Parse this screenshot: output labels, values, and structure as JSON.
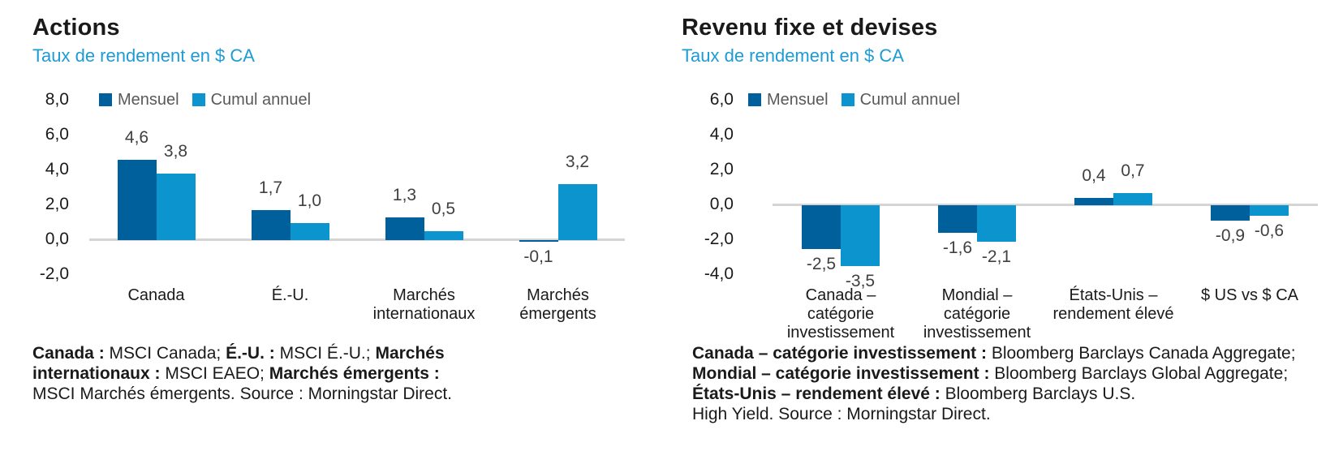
{
  "colors": {
    "mensuel_bar": "#00609C",
    "cumul_bar": "#0C94CF",
    "subtitle_text": "#1E9BD4",
    "zero_line": "#D5D5D5",
    "value_label_text": "#404040",
    "legend_text": "#595959",
    "title_text": "#1A1A1A"
  },
  "chart_data": [
    {
      "type": "bar",
      "title": "Actions",
      "subtitle": "Taux de rendement en $ CA",
      "legend_position": "top",
      "grid": false,
      "ylim": [
        -2,
        8
      ],
      "ytick_step": 2,
      "yticks": [
        "8,0",
        "6,0",
        "4,0",
        "2,0",
        "0,0",
        "-2,0"
      ],
      "categories": [
        [
          "Canada"
        ],
        [
          "É.-U."
        ],
        [
          "Marchés",
          "internationaux"
        ],
        [
          "Marchés",
          "émergents"
        ]
      ],
      "series": [
        {
          "name": "Mensuel",
          "color_key": "mensuel_bar",
          "values": [
            4.6,
            1.7,
            1.3,
            -0.1
          ],
          "labels": [
            "4,6",
            "1,7",
            "1,3",
            "-0,1"
          ]
        },
        {
          "name": "Cumul annuel",
          "color_key": "cumul_bar",
          "values": [
            3.8,
            1.0,
            0.5,
            3.2
          ],
          "labels": [
            "3,8",
            "1,0",
            "0,5",
            "3,2"
          ]
        }
      ],
      "footnote_lines": [
        [
          {
            "text": "Canada :",
            "bold": true
          },
          {
            "text": " MSCI Canada; ",
            "bold": false
          },
          {
            "text": "É.-U. :",
            "bold": true
          },
          {
            "text": " MSCI É.-U.; ",
            "bold": false
          },
          {
            "text": "Marchés",
            "bold": true
          }
        ],
        [
          {
            "text": "internationaux :",
            "bold": true
          },
          {
            "text": " MSCI EAEO; ",
            "bold": false
          },
          {
            "text": "Marchés émergents :",
            "bold": true
          }
        ],
        [
          {
            "text": "MSCI Marchés émergents. Source : Morningstar Direct.",
            "bold": false
          }
        ]
      ]
    },
    {
      "type": "bar",
      "title": "Revenu fixe et devises",
      "subtitle": "Taux de rendement en $ CA",
      "legend_position": "top",
      "grid": false,
      "ylim": [
        -4,
        6
      ],
      "ytick_step": 2,
      "yticks": [
        "6,0",
        "4,0",
        "2,0",
        "0,0",
        "-2,0",
        "-4,0"
      ],
      "categories": [
        [
          "Canada –",
          "catégorie",
          "investissement"
        ],
        [
          "Mondial –",
          "catégorie",
          "investissement"
        ],
        [
          "États-Unis –",
          "rendement élevé"
        ],
        [
          "$ US vs $ CA"
        ]
      ],
      "series": [
        {
          "name": "Mensuel",
          "color_key": "mensuel_bar",
          "values": [
            -2.5,
            -1.6,
            0.4,
            -0.9
          ],
          "labels": [
            "-2,5",
            "-1,6",
            "0,4",
            "-0,9"
          ]
        },
        {
          "name": "Cumul annuel",
          "color_key": "cumul_bar",
          "values": [
            -3.5,
            -2.1,
            0.7,
            -0.6
          ],
          "labels": [
            "-3,5",
            "-2,1",
            "0,7",
            "-0,6"
          ]
        }
      ],
      "footnote_lines": [
        [
          {
            "text": "Canada – catégorie investissement :",
            "bold": true
          },
          {
            "text": " Bloomberg Barclays Canada Aggregate;",
            "bold": false
          }
        ],
        [
          {
            "text": "Mondial – catégorie investissement :",
            "bold": true
          },
          {
            "text": " Bloomberg Barclays Global Aggregate;",
            "bold": false
          }
        ],
        [
          {
            "text": "États-Unis – rendement élevé :",
            "bold": true
          },
          {
            "text": " Bloomberg Barclays U.S.",
            "bold": false
          }
        ],
        [
          {
            "text": "High Yield. Source : Morningstar Direct.",
            "bold": false
          }
        ]
      ]
    }
  ]
}
